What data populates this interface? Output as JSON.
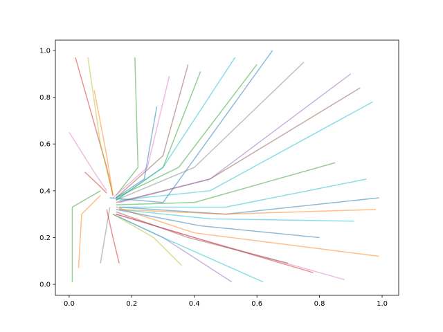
{
  "chart_data": {
    "type": "line",
    "xlim": [
      -0.044,
      1.053
    ],
    "ylim": [
      -0.047,
      1.044
    ],
    "xticks": [
      {
        "value": 0,
        "label": "0.0"
      },
      {
        "value": 0.2,
        "label": "0.2"
      },
      {
        "value": 0.4,
        "label": "0.4"
      },
      {
        "value": 0.6,
        "label": "0.6"
      },
      {
        "value": 0.8,
        "label": "0.8"
      },
      {
        "value": 1,
        "label": "1.0"
      }
    ],
    "yticks": [
      {
        "value": 0,
        "label": "0.0"
      },
      {
        "value": 0.2,
        "label": "0.2"
      },
      {
        "value": 0.4,
        "label": "0.4"
      },
      {
        "value": 0.6,
        "label": "0.6"
      },
      {
        "value": 0.8,
        "label": "0.8"
      },
      {
        "value": 1,
        "label": "1.0"
      }
    ],
    "alpha": 0.5,
    "series": [
      {
        "color": "#1f77b4",
        "x": [
          0.65,
          0.3,
          0.13
        ],
        "values": [
          1.0,
          0.35,
          0.37
        ]
      },
      {
        "color": "#d62728",
        "x": [
          0.02,
          0.12,
          0.14
        ],
        "values": [
          0.97,
          0.5,
          0.38
        ]
      },
      {
        "color": "#ff7f0e",
        "x": [
          0.99,
          0.4,
          0.15
        ],
        "values": [
          0.12,
          0.22,
          0.33
        ]
      },
      {
        "color": "#2ca02c",
        "x": [
          0.01,
          0.01,
          0.1
        ],
        "values": [
          0.01,
          0.33,
          0.4
        ]
      },
      {
        "color": "#17becf",
        "x": [
          0.97,
          0.45,
          0.16
        ],
        "values": [
          0.78,
          0.4,
          0.36
        ]
      },
      {
        "color": "#9467bd",
        "x": [
          0.52,
          0.3,
          0.14
        ],
        "values": [
          0.01,
          0.2,
          0.3
        ]
      },
      {
        "color": "#2ca02c",
        "x": [
          0.21,
          0.22,
          0.15
        ],
        "values": [
          0.97,
          0.5,
          0.38
        ]
      },
      {
        "color": "#8c564b",
        "x": [
          0.38,
          0.3,
          0.15
        ],
        "values": [
          0.94,
          0.55,
          0.37
        ]
      },
      {
        "color": "#e377c2",
        "x": [
          0.88,
          0.4,
          0.15
        ],
        "values": [
          0.02,
          0.2,
          0.3
        ]
      },
      {
        "color": "#1f77b4",
        "x": [
          0.99,
          0.5,
          0.16
        ],
        "values": [
          0.37,
          0.3,
          0.33
        ]
      },
      {
        "color": "#8c564b",
        "x": [
          0.93,
          0.45,
          0.15
        ],
        "values": [
          0.84,
          0.45,
          0.35
        ]
      },
      {
        "color": "#e377c2",
        "x": [
          0.0,
          0.08,
          0.12
        ],
        "values": [
          0.65,
          0.48,
          0.4
        ]
      },
      {
        "color": "#7f7f7f",
        "x": [
          0.1,
          0.12,
          0.13
        ],
        "values": [
          0.09,
          0.25,
          0.33
        ]
      },
      {
        "color": "#bcbd22",
        "x": [
          0.06,
          0.1,
          0.14
        ],
        "values": [
          0.97,
          0.6,
          0.38
        ]
      },
      {
        "color": "#ff7f0e",
        "x": [
          0.03,
          0.04,
          0.1
        ],
        "values": [
          0.07,
          0.3,
          0.38
        ]
      },
      {
        "color": "#17becf",
        "x": [
          0.91,
          0.45,
          0.16
        ],
        "values": [
          0.27,
          0.28,
          0.32
        ]
      },
      {
        "color": "#7f7f7f",
        "x": [
          0.75,
          0.4,
          0.15
        ],
        "values": [
          0.95,
          0.5,
          0.36
        ]
      },
      {
        "color": "#2ca02c",
        "x": [
          0.6,
          0.35,
          0.15
        ],
        "values": [
          0.94,
          0.5,
          0.37
        ]
      },
      {
        "color": "#2ca02c",
        "x": [
          0.85,
          0.4,
          0.15
        ],
        "values": [
          0.52,
          0.35,
          0.34
        ]
      },
      {
        "color": "#2ca02c",
        "x": [
          0.42,
          0.3,
          0.15
        ],
        "values": [
          0.91,
          0.5,
          0.36
        ]
      },
      {
        "color": "#d62728",
        "x": [
          0.78,
          0.4,
          0.15
        ],
        "values": [
          0.05,
          0.2,
          0.3
        ]
      },
      {
        "color": "#17becf",
        "x": [
          0.95,
          0.5,
          0.16
        ],
        "values": [
          0.45,
          0.33,
          0.33
        ]
      },
      {
        "color": "#e377c2",
        "x": [
          0.32,
          0.25,
          0.14
        ],
        "values": [
          0.89,
          0.5,
          0.37
        ]
      },
      {
        "color": "#d62728",
        "x": [
          0.16,
          0.14,
          0.12
        ],
        "values": [
          0.09,
          0.2,
          0.32
        ]
      },
      {
        "color": "#ff7f0e",
        "x": [
          0.08,
          0.12,
          0.14
        ],
        "values": [
          0.83,
          0.55,
          0.38
        ]
      },
      {
        "color": "#17becf",
        "x": [
          0.62,
          0.3,
          0.14
        ],
        "values": [
          0.01,
          0.2,
          0.3
        ]
      },
      {
        "color": "#ff7f0e",
        "x": [
          0.98,
          0.5,
          0.16
        ],
        "values": [
          0.32,
          0.3,
          0.32
        ]
      },
      {
        "color": "#bcbd22",
        "x": [
          0.36,
          0.27,
          0.14
        ],
        "values": [
          0.08,
          0.2,
          0.3
        ]
      },
      {
        "color": "#17becf",
        "x": [
          0.53,
          0.3,
          0.15
        ],
        "values": [
          0.97,
          0.5,
          0.36
        ]
      },
      {
        "color": "#9467bd",
        "x": [
          0.9,
          0.45,
          0.16
        ],
        "values": [
          0.9,
          0.45,
          0.35
        ]
      },
      {
        "color": "#d62728",
        "x": [
          0.05,
          0.09,
          0.12
        ],
        "values": [
          0.48,
          0.43,
          0.39
        ]
      },
      {
        "color": "#1f77b4",
        "x": [
          0.8,
          0.42,
          0.15
        ],
        "values": [
          0.2,
          0.25,
          0.32
        ]
      },
      {
        "color": "#1f77b4",
        "x": [
          0.28,
          0.24,
          0.15
        ],
        "values": [
          0.76,
          0.45,
          0.37
        ]
      },
      {
        "color": "#8c564b",
        "x": [
          0.7,
          0.38,
          0.15
        ],
        "values": [
          0.09,
          0.2,
          0.31
        ]
      }
    ]
  }
}
